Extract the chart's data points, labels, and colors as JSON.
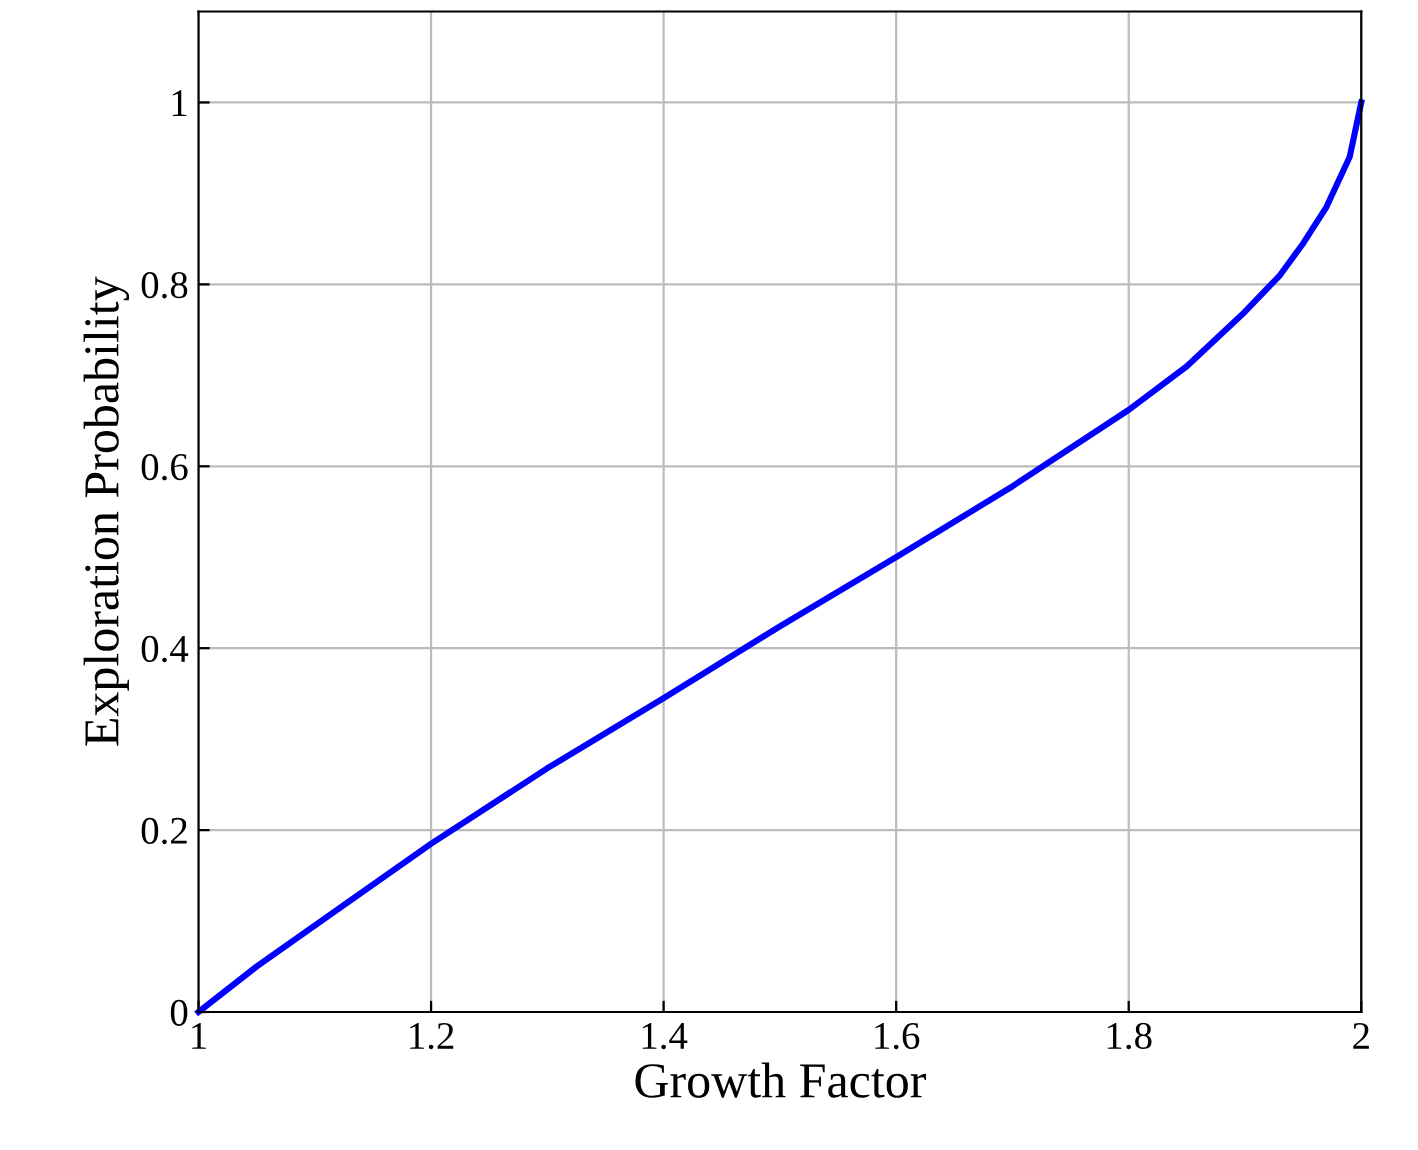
{
  "chart_data": {
    "type": "line",
    "xlabel": "Growth Factor",
    "ylabel": "Exploration Probability",
    "x": [
      1,
      1.05,
      1.1,
      1.2,
      1.3,
      1.4,
      1.5,
      1.6,
      1.7,
      1.8,
      1.85,
      1.9,
      1.93,
      1.95,
      1.97,
      1.99,
      2
    ],
    "series": [
      {
        "color": "#0000ff",
        "values": [
          0,
          0.05,
          0.095,
          0.185,
          0.268,
          0.345,
          0.424,
          0.5,
          0.578,
          0.662,
          0.71,
          0.77,
          0.81,
          0.845,
          0.885,
          0.94,
          1.0
        ]
      }
    ],
    "xlim": [
      1,
      2
    ],
    "ylim": [
      0,
      1.1
    ],
    "xticks": [
      1,
      1.2,
      1.4,
      1.6,
      1.8,
      2
    ],
    "yticks": [
      0,
      0.2,
      0.4,
      0.6,
      0.8,
      1
    ],
    "grid": true,
    "marker": "none",
    "line_style": "solid",
    "legend": false
  }
}
